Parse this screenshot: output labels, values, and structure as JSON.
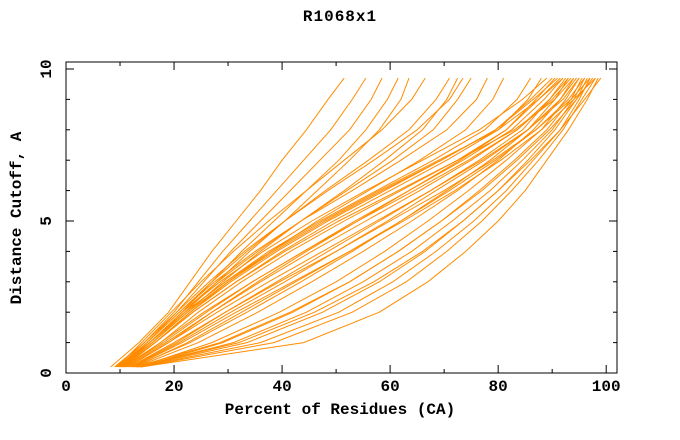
{
  "chart_data": {
    "type": "line",
    "title": "R1068x1",
    "xlabel": "Percent of Residues (CA)",
    "ylabel": "Distance Cutoff, A",
    "xlim": [
      0,
      102
    ],
    "ylim": [
      0,
      10.23
    ],
    "x_major_ticks": [
      0,
      20,
      40,
      60,
      80,
      100
    ],
    "x_minor_ticks": [
      10,
      30,
      50,
      70,
      90
    ],
    "y_major_ticks": [
      0,
      5,
      10
    ],
    "y_minor_ticks": [
      1,
      2,
      3,
      4,
      6,
      7,
      8,
      9
    ],
    "grid": false,
    "legend": "none",
    "line_color": "#FF8C00",
    "axis_color": "#000000",
    "background_color": "#FFFFFF",
    "y_levels": [
      0.2,
      1,
      2,
      3,
      4,
      5,
      6,
      7,
      8,
      9,
      9.7
    ],
    "curves": [
      [
        8.3,
        13.5,
        19.0,
        23.0,
        27.0,
        31.5,
        36.0,
        40.0,
        44.5,
        48.5,
        51.5
      ],
      [
        9.0,
        14.5,
        20.0,
        24.5,
        29.0,
        34.0,
        39.0,
        44.0,
        49.0,
        53.0,
        55.5
      ],
      [
        9.5,
        15.0,
        20.5,
        25.5,
        30.5,
        36.0,
        41.5,
        47.0,
        52.5,
        56.5,
        58.5
      ],
      [
        9.2,
        15.5,
        21.5,
        27.0,
        32.5,
        38.5,
        44.5,
        50.5,
        55.5,
        59.5,
        61.5
      ],
      [
        10.0,
        16.0,
        22.0,
        28.0,
        34.0,
        40.5,
        46.5,
        52.5,
        58.0,
        62.0,
        63.5
      ],
      [
        9.4,
        14.0,
        19.5,
        25.0,
        31.0,
        37.5,
        44.5,
        51.5,
        58.5,
        64.0,
        66.5
      ],
      [
        9.8,
        15.0,
        21.0,
        27.0,
        33.5,
        40.5,
        48.0,
        56.0,
        63.5,
        68.5,
        71.0
      ],
      [
        10.4,
        16.0,
        22.5,
        29.0,
        36.0,
        43.5,
        51.5,
        59.0,
        66.0,
        70.5,
        72.5
      ],
      [
        9.6,
        14.5,
        20.5,
        26.5,
        33.0,
        40.5,
        48.5,
        57.0,
        65.0,
        71.0,
        73.5
      ],
      [
        10.2,
        15.5,
        21.5,
        28.0,
        35.5,
        43.5,
        52.0,
        60.5,
        68.0,
        72.5,
        75.0
      ],
      [
        9.9,
        15.0,
        21.0,
        27.5,
        35.0,
        43.5,
        53.0,
        62.0,
        70.5,
        76.0,
        78.0
      ],
      [
        10.5,
        16.5,
        23.0,
        30.0,
        38.0,
        46.5,
        56.0,
        65.5,
        74.0,
        79.0,
        81.0
      ],
      [
        9.7,
        15.5,
        22.0,
        29.5,
        37.5,
        47.0,
        57.5,
        68.0,
        77.5,
        83.5,
        86.0
      ],
      [
        10.6,
        16.5,
        23.5,
        31.5,
        40.0,
        49.5,
        60.0,
        70.5,
        80.0,
        85.5,
        88.0
      ],
      [
        10.0,
        15.5,
        21.5,
        28.5,
        36.5,
        45.5,
        55.5,
        66.0,
        76.5,
        84.5,
        89.0
      ],
      [
        10.8,
        16.5,
        23.0,
        30.5,
        39.0,
        48.5,
        59.0,
        69.5,
        79.5,
        86.0,
        90.0
      ],
      [
        11.0,
        17.5,
        24.5,
        32.5,
        41.5,
        51.5,
        62.0,
        72.5,
        81.5,
        87.0,
        90.5
      ],
      [
        10.3,
        16.0,
        22.5,
        30.0,
        38.5,
        48.0,
        58.5,
        69.5,
        79.5,
        86.5,
        91.0
      ],
      [
        11.5,
        19.0,
        27.0,
        35.5,
        44.5,
        54.0,
        63.5,
        73.0,
        81.5,
        87.5,
        91.5
      ],
      [
        10.9,
        18.0,
        26.0,
        34.5,
        44.0,
        53.5,
        63.5,
        73.5,
        82.5,
        88.5,
        92.0
      ],
      [
        10.1,
        15.5,
        22.0,
        29.5,
        38.0,
        47.5,
        58.0,
        69.0,
        80.0,
        87.5,
        92.0
      ],
      [
        12.0,
        20.5,
        29.5,
        39.0,
        48.5,
        58.0,
        67.5,
        76.5,
        84.5,
        89.5,
        92.5
      ],
      [
        11.2,
        18.5,
        27.0,
        36.0,
        45.5,
        55.5,
        65.5,
        75.0,
        83.5,
        89.5,
        93.0
      ],
      [
        12.5,
        23.0,
        33.5,
        43.5,
        53.0,
        62.0,
        70.5,
        78.5,
        85.5,
        90.5,
        93.0
      ],
      [
        10.7,
        17.5,
        25.5,
        34.5,
        44.0,
        54.0,
        64.5,
        74.5,
        83.5,
        90.0,
        93.5
      ],
      [
        13.0,
        24.5,
        35.5,
        45.5,
        55.0,
        64.0,
        72.5,
        80.0,
        86.5,
        91.5,
        94.0
      ],
      [
        10.4,
        16.5,
        23.5,
        31.5,
        40.5,
        50.5,
        61.5,
        72.5,
        83.0,
        90.5,
        94.0
      ],
      [
        12.2,
        21.0,
        30.5,
        40.5,
        50.0,
        59.5,
        68.5,
        77.5,
        85.5,
        91.5,
        94.5
      ],
      [
        13.5,
        27.0,
        39.5,
        50.0,
        59.0,
        67.0,
        74.5,
        81.5,
        88.0,
        92.5,
        95.0
      ],
      [
        11.4,
        19.0,
        28.0,
        37.5,
        47.5,
        57.5,
        67.5,
        77.0,
        85.5,
        92.0,
        95.0
      ],
      [
        13.8,
        29.0,
        42.0,
        52.5,
        61.5,
        69.5,
        76.5,
        83.0,
        89.0,
        93.5,
        95.5
      ],
      [
        12.8,
        22.5,
        32.5,
        42.5,
        52.5,
        62.0,
        71.0,
        79.5,
        87.0,
        93.0,
        96.0
      ],
      [
        13.2,
        31.0,
        44.5,
        55.0,
        64.0,
        71.5,
        78.5,
        84.5,
        90.0,
        94.0,
        96.0
      ],
      [
        13.4,
        33.5,
        47.5,
        58.0,
        66.5,
        73.5,
        80.0,
        85.5,
        90.5,
        94.5,
        96.5
      ],
      [
        11.8,
        20.0,
        29.5,
        39.5,
        50.0,
        60.0,
        70.0,
        79.0,
        87.0,
        93.5,
        97.0
      ],
      [
        13.6,
        36.0,
        50.5,
        60.5,
        68.5,
        75.5,
        81.5,
        86.5,
        91.5,
        95.0,
        97.0
      ],
      [
        12.9,
        28.5,
        41.5,
        52.5,
        61.5,
        69.5,
        77.0,
        83.5,
        89.5,
        94.5,
        97.5
      ],
      [
        13.9,
        38.5,
        53.0,
        63.0,
        70.5,
        77.0,
        82.5,
        87.5,
        92.0,
        95.5,
        98.0
      ],
      [
        12.4,
        21.5,
        31.5,
        42.0,
        52.5,
        62.5,
        72.0,
        80.5,
        88.0,
        94.0,
        98.0
      ],
      [
        14.0,
        44.0,
        58.0,
        67.0,
        74.0,
        80.0,
        85.0,
        89.0,
        93.0,
        96.5,
        98.5
      ],
      [
        13.1,
        32.0,
        46.0,
        57.0,
        66.0,
        73.5,
        80.0,
        86.0,
        91.5,
        96.0,
        99.0
      ]
    ]
  }
}
